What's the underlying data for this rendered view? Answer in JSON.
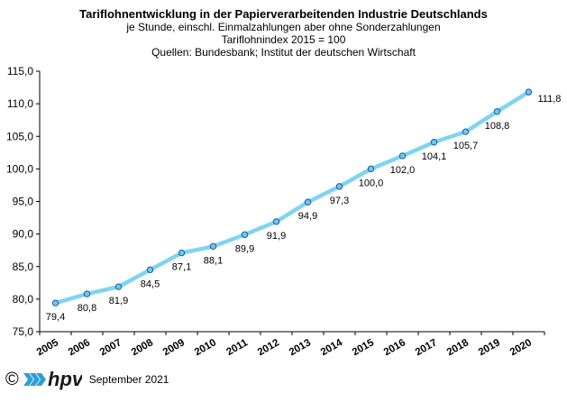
{
  "chart_data": {
    "type": "line",
    "title": "Tariflohnentwicklung in der Papierverarbeitenden Industrie Deutschlands",
    "subtitles": [
      "je Stunde,  einschl. Einmalzahlungen  aber ohne Sonderzahlungen",
      "Tariflohnindex  2015  = 100",
      "Quellen: Bundesbank; Institut der deutschen Wirtschaft"
    ],
    "categories": [
      "2005",
      "2006",
      "2007",
      "2008",
      "2009",
      "2010",
      "2011",
      "2012",
      "2013",
      "2014",
      "2015",
      "2016",
      "2017",
      "2018",
      "2019",
      "2020"
    ],
    "series": [
      {
        "values": [
          79.4,
          80.8,
          81.9,
          84.5,
          87.1,
          88.1,
          89.9,
          91.9,
          94.9,
          97.3,
          100.0,
          102.0,
          104.1,
          105.7,
          108.8,
          111.8
        ],
        "value_labels": [
          "79,4",
          "80,8",
          "81,9",
          "84,5",
          "87,1",
          "88,1",
          "89,9",
          "91,9",
          "94,9",
          "97,3",
          "100,0",
          "102,0",
          "104,1",
          "105,7",
          "108,8",
          "111,8"
        ]
      }
    ],
    "ylim": [
      75,
      115
    ],
    "yticks": [
      "75,0",
      "80,0",
      "85,0",
      "90,0",
      "95,0",
      "100,0",
      "105,0",
      "110,0",
      "115,0"
    ],
    "grid": false,
    "line_color": "#7fd4f2",
    "marker_color": "#6ec8ea",
    "marker_edge": "#1e5a9e"
  },
  "footer": {
    "copyright": "©",
    "logo_text": "hpv",
    "date": "September 2021"
  }
}
